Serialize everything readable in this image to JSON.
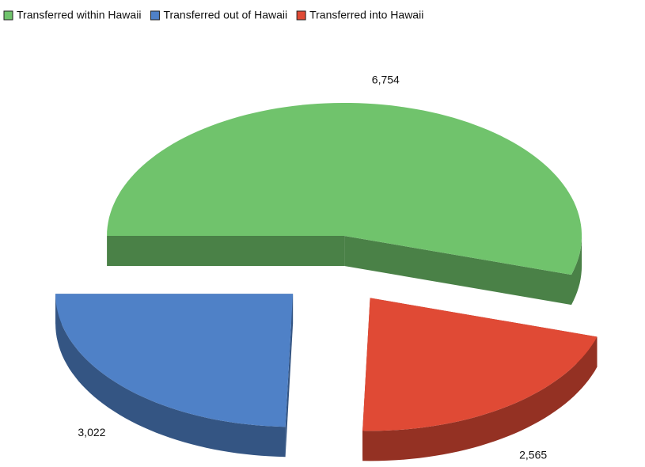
{
  "chart_data": {
    "type": "pie3d",
    "categories": [
      "Transferred within Hawaii",
      "Transferred out of Hawaii",
      "Transferred into Hawaii"
    ],
    "values": [
      6754,
      3022,
      2565
    ],
    "value_labels": [
      "6,754",
      "3,022",
      "2,565"
    ],
    "colors": [
      "#70c36c",
      "#4f81c7",
      "#e04a35"
    ],
    "legend": "top"
  }
}
